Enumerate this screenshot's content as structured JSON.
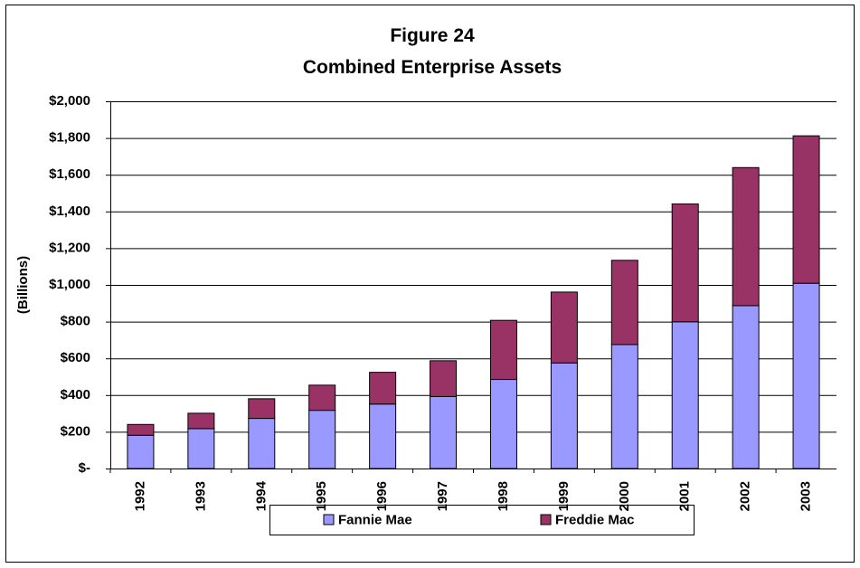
{
  "chart_data": {
    "type": "stacked_bar",
    "title": "Figure 24",
    "subtitle": "Combined Enterprise Assets",
    "y_label": "(Billions)",
    "categories": [
      "1992",
      "1993",
      "1994",
      "1995",
      "1996",
      "1997",
      "1998",
      "1999",
      "2000",
      "2001",
      "2002",
      "2003"
    ],
    "series": [
      {
        "name": "Fannie Mae",
        "color": "#9999ff",
        "values": [
          181,
          217,
          273,
          317,
          351,
          392,
          485,
          575,
          675,
          799,
          887,
          1009
        ]
      },
      {
        "name": "Freddie Mac",
        "color": "#993366",
        "values": [
          59,
          84,
          107,
          137,
          173,
          195,
          322,
          386,
          459,
          642,
          752,
          803
        ]
      }
    ],
    "ylim": [
      0,
      2000
    ],
    "yticks": [
      {
        "value": 0,
        "label": "$-"
      },
      {
        "value": 200,
        "label": "$200"
      },
      {
        "value": 400,
        "label": "$400"
      },
      {
        "value": 600,
        "label": "$600"
      },
      {
        "value": 800,
        "label": "$800"
      },
      {
        "value": 1000,
        "label": "$1,000"
      },
      {
        "value": 1200,
        "label": "$1,200"
      },
      {
        "value": 1400,
        "label": "$1,400"
      },
      {
        "value": 1600,
        "label": "$1,600"
      },
      {
        "value": 1800,
        "label": "$1,800"
      },
      {
        "value": 2000,
        "label": "$2,000"
      }
    ],
    "grid": true
  }
}
